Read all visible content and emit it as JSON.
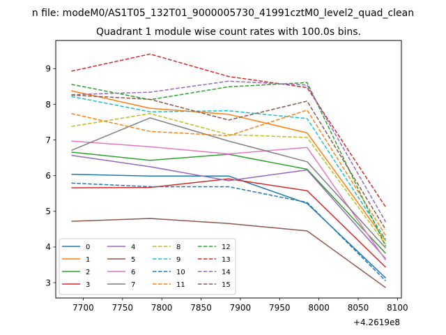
{
  "figure": {
    "suptitle": "n file: modeM0/AS1T05_132T01_9000005730_41991cztM0_level2_quad_clean",
    "offset_label": "+4.2619e8"
  },
  "chart_data": {
    "type": "line",
    "title": "Quadrant 1 module wise count rates with 100.0s bins.",
    "xlabel": "",
    "ylabel": "",
    "xlim": [
      7665,
      8105
    ],
    "ylim": [
      2.57,
      9.79
    ],
    "x_ticks": [
      7700,
      7750,
      7800,
      7850,
      7900,
      7950,
      8000,
      8050,
      8100
    ],
    "y_ticks": [
      3,
      4,
      5,
      6,
      7,
      8,
      9
    ],
    "x": [
      7685,
      7785,
      7885,
      7985,
      8085
    ],
    "grid": false,
    "legend_position": "lower-left",
    "series": [
      {
        "name": "0",
        "color": "#1f77b4",
        "dash": "solid",
        "values": [
          6.04,
          5.99,
          5.99,
          5.22,
          3.13
        ]
      },
      {
        "name": "1",
        "color": "#ff7f0e",
        "dash": "solid",
        "values": [
          8.38,
          7.89,
          7.72,
          7.2,
          4.17
        ]
      },
      {
        "name": "2",
        "color": "#2ca02c",
        "dash": "solid",
        "values": [
          6.66,
          6.43,
          6.6,
          6.18,
          3.82
        ]
      },
      {
        "name": "3",
        "color": "#d62728",
        "dash": "solid",
        "values": [
          5.66,
          5.67,
          5.91,
          5.58,
          3.43
        ]
      },
      {
        "name": "4",
        "color": "#9467bd",
        "dash": "solid",
        "values": [
          6.57,
          6.25,
          5.86,
          6.16,
          3.67
        ]
      },
      {
        "name": "5",
        "color": "#8c564b",
        "dash": "solid",
        "values": [
          4.72,
          4.8,
          4.66,
          4.45,
          2.86
        ]
      },
      {
        "name": "6",
        "color": "#e377c2",
        "dash": "solid",
        "values": [
          6.97,
          6.81,
          6.61,
          6.79,
          3.63
        ]
      },
      {
        "name": "7",
        "color": "#7f7f7f",
        "dash": "solid",
        "values": [
          6.71,
          7.62,
          6.97,
          6.39,
          3.97
        ]
      },
      {
        "name": "8",
        "color": "#bcbd22",
        "dash": "dashed",
        "values": [
          7.38,
          7.74,
          7.15,
          7.07,
          4.07
        ]
      },
      {
        "name": "9",
        "color": "#17becf",
        "dash": "dashed",
        "values": [
          8.22,
          7.79,
          7.82,
          7.6,
          4.21
        ]
      },
      {
        "name": "10",
        "color": "#1f77b4",
        "dash": "dashed",
        "values": [
          5.79,
          5.69,
          5.69,
          5.25,
          3.05
        ]
      },
      {
        "name": "11",
        "color": "#ff7f0e",
        "dash": "dashed",
        "values": [
          7.74,
          7.24,
          7.12,
          7.84,
          4.32
        ]
      },
      {
        "name": "12",
        "color": "#2ca02c",
        "dash": "dashed",
        "values": [
          8.56,
          8.13,
          8.49,
          8.61,
          4.02
        ]
      },
      {
        "name": "13",
        "color": "#d62728",
        "dash": "dashed",
        "values": [
          8.93,
          9.41,
          8.78,
          8.47,
          5.12
        ]
      },
      {
        "name": "14",
        "color": "#9467bd",
        "dash": "dashed",
        "values": [
          8.27,
          8.34,
          8.65,
          8.54,
          4.7
        ]
      },
      {
        "name": "15",
        "color": "#8c564b",
        "dash": "dashed",
        "values": [
          8.26,
          8.14,
          7.56,
          8.09,
          4.49
        ]
      }
    ]
  }
}
